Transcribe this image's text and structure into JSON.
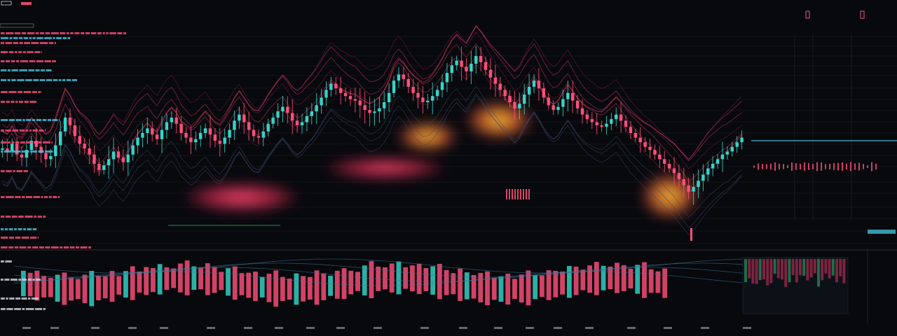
{
  "colors": {
    "background": "#07090d",
    "bull": "#33d6c8",
    "bear": "#ff4f7a",
    "ribbon_bear": "#ff3d6e",
    "glow_warm": "#ffb02e",
    "glow_red": "#ff2f5e",
    "grid": "#2a2f38",
    "label_red": "#ff4f7a",
    "label_cyan": "#45c6e0",
    "label_white": "#cfd6df"
  },
  "chart_data": [
    {
      "type": "candlestick",
      "role": "main-price-panel",
      "title": "",
      "xlabel": "",
      "ylabel": "",
      "grid": true,
      "series": [
        {
          "values": [
            0.4,
            0.38,
            0.43,
            0.36,
            0.34,
            0.39,
            0.45,
            0.41,
            0.37,
            0.33,
            0.35,
            0.42,
            0.51,
            0.6,
            0.55,
            0.48,
            0.43,
            0.4,
            0.36,
            0.3,
            0.26,
            0.29,
            0.33,
            0.38,
            0.34,
            0.31,
            0.36,
            0.42,
            0.47,
            0.5,
            0.53,
            0.49,
            0.46,
            0.52,
            0.57,
            0.6,
            0.56,
            0.5,
            0.47,
            0.44,
            0.46,
            0.5,
            0.53,
            0.49,
            0.45,
            0.43,
            0.47,
            0.52,
            0.58,
            0.62,
            0.57,
            0.52,
            0.48,
            0.47,
            0.51,
            0.56,
            0.6,
            0.64,
            0.67,
            0.63,
            0.58,
            0.55,
            0.57,
            0.61,
            0.64,
            0.68,
            0.73,
            0.78,
            0.82,
            0.79,
            0.76,
            0.74,
            0.72,
            0.71,
            0.68,
            0.65,
            0.63,
            0.64,
            0.66,
            0.7,
            0.76,
            0.84,
            0.88,
            0.85,
            0.8,
            0.76,
            0.73,
            0.7,
            0.71,
            0.74,
            0.78,
            0.83,
            0.89,
            0.94,
            0.97,
            0.93,
            0.9,
            0.95,
            1.0,
            0.96,
            0.91,
            0.86,
            0.82,
            0.78,
            0.74,
            0.7,
            0.66,
            0.69,
            0.75,
            0.8,
            0.84,
            0.79,
            0.73,
            0.68,
            0.65,
            0.67,
            0.72,
            0.76,
            0.71,
            0.66,
            0.62,
            0.59,
            0.57,
            0.55,
            0.54,
            0.56,
            0.59,
            0.62,
            0.58,
            0.54,
            0.5,
            0.47,
            0.44,
            0.41,
            0.39,
            0.36,
            0.33,
            0.3,
            0.27,
            0.24,
            0.2,
            0.16,
            0.12,
            0.15,
            0.19,
            0.23,
            0.27,
            0.3,
            0.33,
            0.36,
            0.38,
            0.41,
            0.44,
            0.47
          ]
        }
      ]
    },
    {
      "type": "bar",
      "role": "lower-volume-panel",
      "title": "",
      "grid": true,
      "series": [
        {
          "values": [
            0.52,
            0.48,
            0.61,
            0.44,
            0.39,
            0.55,
            0.66,
            0.47,
            0.41,
            0.58,
            0.72,
            0.5,
            0.45,
            0.63,
            0.38,
            0.54,
            0.69,
            0.43,
            0.57,
            0.49,
            0.62,
            0.46,
            0.4,
            0.59,
            0.71,
            0.48,
            0.44,
            0.65,
            0.53,
            0.37,
            0.56,
            0.68,
            0.45,
            0.51,
            0.6,
            0.42,
            0.58,
            0.74,
            0.49,
            0.43,
            0.64,
            0.52,
            0.46,
            0.7,
            0.55,
            0.41,
            0.57,
            0.63,
            0.48,
            0.39,
            0.61,
            0.76,
            0.5,
            0.45,
            0.59,
            0.67,
            0.44,
            0.53,
            0.62,
            0.47,
            0.58,
            0.72,
            0.51,
            0.43,
            0.66,
            0.55,
            0.48,
            0.6,
            0.69,
            0.45,
            0.52,
            0.63,
            0.41,
            0.57,
            0.71,
            0.49,
            0.44,
            0.61,
            0.54,
            0.47,
            0.65,
            0.58,
            0.42,
            0.56,
            0.68,
            0.5,
            0.46,
            0.62,
            0.53,
            0.4,
            0.59,
            0.73,
            0.48,
            0.44,
            0.6
          ]
        }
      ]
    }
  ]
}
